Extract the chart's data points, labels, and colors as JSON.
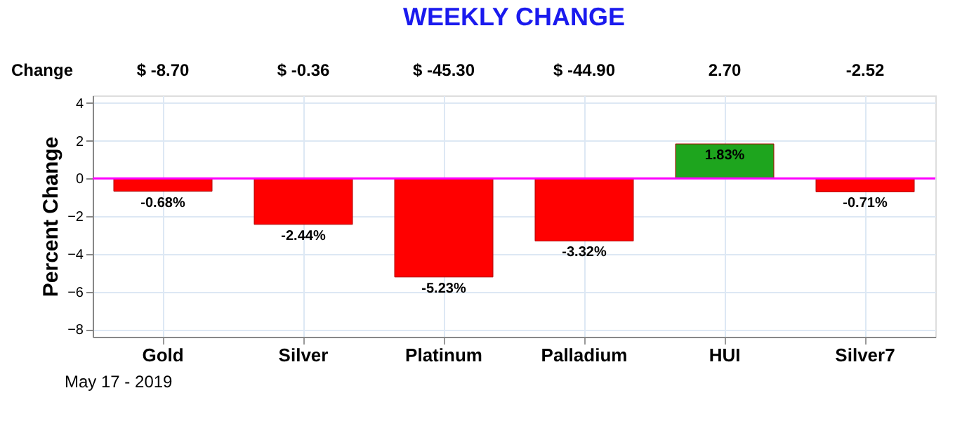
{
  "chart_data": {
    "type": "bar",
    "title": "WEEKLY CHANGE",
    "ylabel": "Percent Change",
    "categories": [
      "Gold",
      "Silver",
      "Platinum",
      "Palladium",
      "HUI",
      "Silver7"
    ],
    "values": [
      -0.68,
      -2.44,
      -5.23,
      -3.32,
      1.83,
      -0.71
    ],
    "colors": [
      "#ff0000",
      "#ff0000",
      "#ff0000",
      "#ff0000",
      "#1ea51e",
      "#ff0000"
    ],
    "value_labels": [
      "-0.68%",
      "-2.44%",
      "-5.23%",
      "-3.32%",
      "1.83%",
      "-0.71%"
    ],
    "annotations": [
      "Change",
      "$ -8.70",
      "$ -0.36",
      "$ -45.30",
      "$ -44.90",
      "2.70",
      "-2.52",
      "May 17 - 2019"
    ],
    "ylim": [
      -8.4,
      4.4
    ],
    "yticks": [
      -8,
      -6,
      -4,
      -2,
      0,
      2,
      4
    ],
    "ref_lines": [
      {
        "axis": "y",
        "value": 0,
        "label": null,
        "color": "#ff00ff"
      }
    ],
    "grid": true
  }
}
